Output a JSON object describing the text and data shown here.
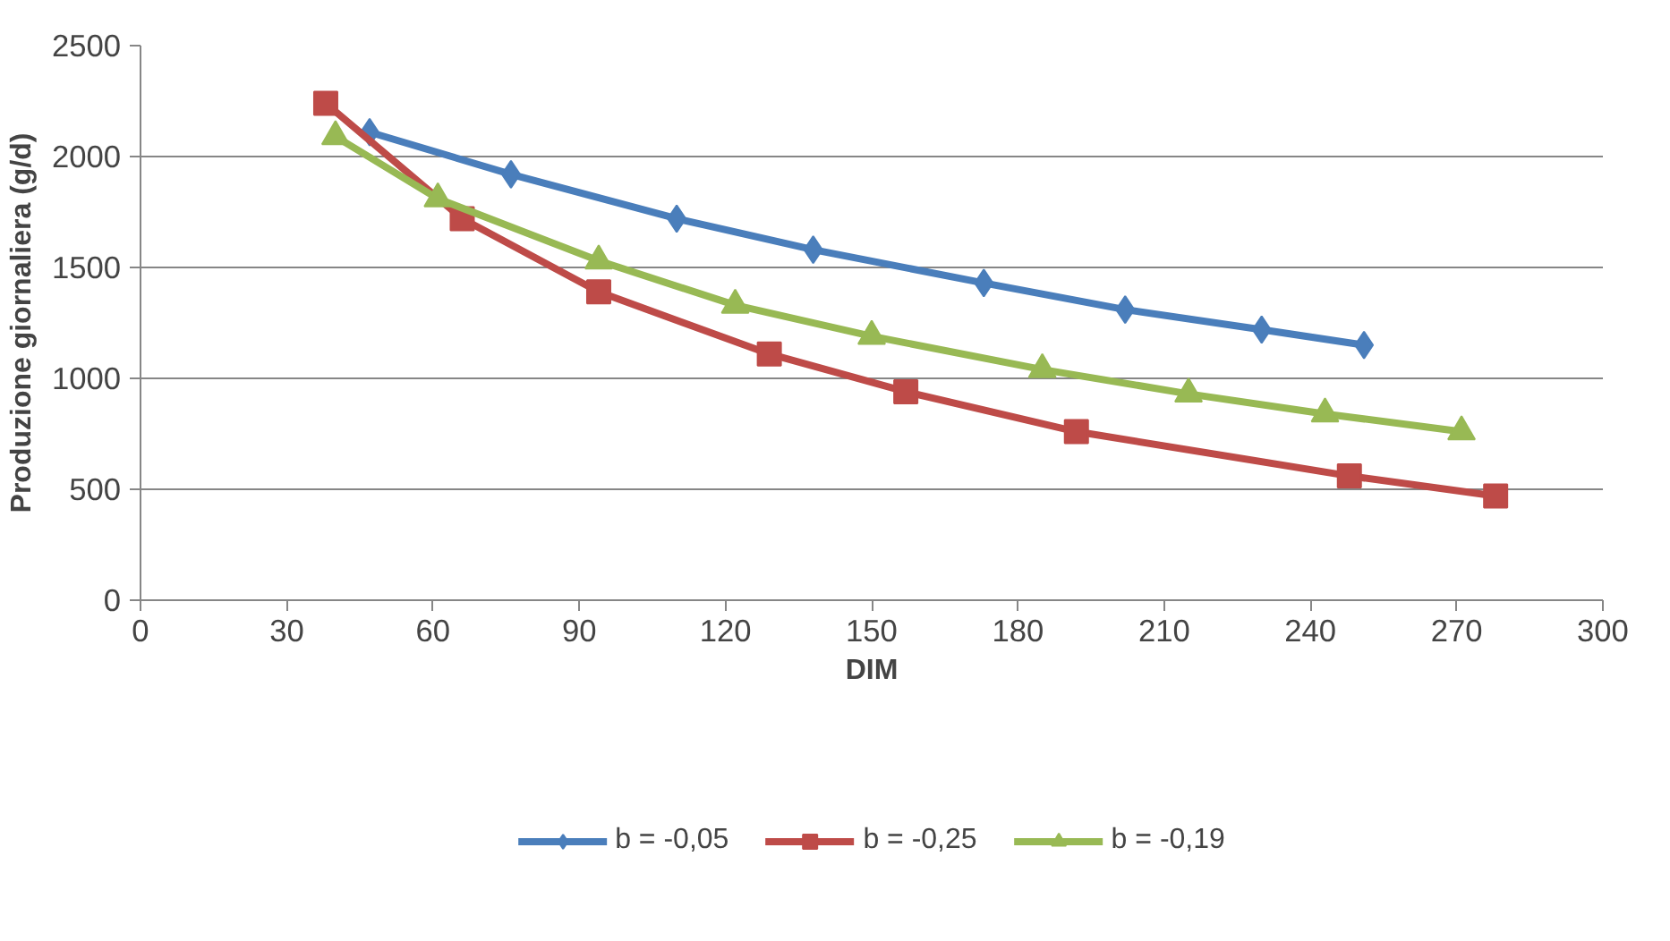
{
  "chart_data": {
    "type": "line",
    "xlabel": "DIM",
    "ylabel": "Produzione giornaliera (g/d)",
    "xlim": [
      0,
      300
    ],
    "xticks": [
      0,
      30,
      60,
      90,
      120,
      150,
      180,
      210,
      240,
      270,
      300
    ],
    "ylim": [
      0,
      2500
    ],
    "yticks": [
      0,
      500,
      1000,
      1500,
      2000,
      2500
    ],
    "grid": "y",
    "legend": "bottom",
    "line_style": "solid",
    "series": [
      {
        "name": "b = -0,05",
        "color": "#4a7ebb",
        "marker": "diamond",
        "x": [
          47,
          76,
          110,
          138,
          173,
          202,
          230,
          251
        ],
        "values": [
          2110,
          1920,
          1720,
          1580,
          1430,
          1310,
          1220,
          1150
        ]
      },
      {
        "name": "b = -0,25",
        "color": "#be4b48",
        "marker": "square",
        "x": [
          38,
          66,
          94,
          129,
          157,
          192,
          248,
          278
        ],
        "values": [
          2240,
          1720,
          1390,
          1110,
          940,
          760,
          560,
          470
        ]
      },
      {
        "name": "b = -0,19",
        "color": "#98b954",
        "marker": "triangle",
        "x": [
          40,
          61,
          94,
          122,
          150,
          185,
          215,
          243,
          271
        ],
        "values": [
          2090,
          1810,
          1530,
          1330,
          1190,
          1040,
          930,
          840,
          760
        ]
      }
    ]
  }
}
